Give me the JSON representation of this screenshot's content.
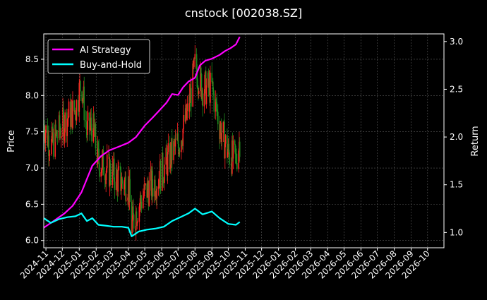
{
  "colors": {
    "background": "#000000",
    "foreground": "#ffffff",
    "grid": "#5a5a5a",
    "strategy": "#ff00ff",
    "buyhold": "#00ffff",
    "candle_up": "#ff2222",
    "candle_down": "#1f8a1f"
  },
  "chart_data": {
    "type": "line",
    "title": "cnstock [002038.SZ]",
    "ylabel_left": "Price",
    "ylabel_right": "Return",
    "grid": true,
    "legend_placement": "top-left",
    "x_tick_labels": [
      "2024-11",
      "2024-12",
      "2025-01",
      "2025-02",
      "2025-03",
      "2025-04",
      "2025-05",
      "2025-06",
      "2025-07",
      "2025-08",
      "2025-09",
      "2025-10",
      "2025-11",
      "2025-12",
      "2026-01",
      "2026-02",
      "2026-03",
      "2026-04",
      "2026-05",
      "2026-06",
      "2026-07",
      "2026-08",
      "2026-09",
      "2026-10"
    ],
    "xlim": [
      "2024-10-28",
      "2026-10-31"
    ],
    "y_left": {
      "ticks": [
        "6.0",
        "6.5",
        "7.0",
        "7.5",
        "8.0",
        "8.5"
      ],
      "lim": [
        5.9,
        8.85
      ]
    },
    "y_right": {
      "ticks": [
        "1.0",
        "1.5",
        "2.0",
        "2.5",
        "3.0"
      ],
      "lim": [
        0.84,
        3.08
      ]
    },
    "series": [
      {
        "name": "AI Strategy",
        "axis": "right",
        "x": [
          "2024-10-28",
          "2024-11-15",
          "2024-12-05",
          "2024-12-20",
          "2025-01-05",
          "2025-01-15",
          "2025-01-25",
          "2025-02-10",
          "2025-02-25",
          "2025-03-15",
          "2025-04-01",
          "2025-04-15",
          "2025-05-01",
          "2025-05-15",
          "2025-05-28",
          "2025-06-10",
          "2025-06-20",
          "2025-07-01",
          "2025-07-10",
          "2025-07-20",
          "2025-08-01",
          "2025-08-10",
          "2025-08-20",
          "2025-09-01",
          "2025-09-15",
          "2025-09-25",
          "2025-10-05",
          "2025-10-15",
          "2025-10-22"
        ],
        "values": [
          1.05,
          1.12,
          1.2,
          1.28,
          1.42,
          1.56,
          1.7,
          1.8,
          1.86,
          1.9,
          1.94,
          2.0,
          2.12,
          2.2,
          2.28,
          2.36,
          2.45,
          2.44,
          2.52,
          2.58,
          2.62,
          2.75,
          2.8,
          2.82,
          2.86,
          2.9,
          2.93,
          2.97,
          3.05
        ]
      },
      {
        "name": "Buy-and-Hold",
        "axis": "right",
        "x": [
          "2024-10-28",
          "2024-11-10",
          "2024-11-25",
          "2024-12-10",
          "2024-12-25",
          "2025-01-05",
          "2025-01-15",
          "2025-01-25",
          "2025-02-05",
          "2025-02-20",
          "2025-03-05",
          "2025-03-20",
          "2025-04-01",
          "2025-04-07",
          "2025-04-20",
          "2025-05-05",
          "2025-05-20",
          "2025-06-05",
          "2025-06-20",
          "2025-07-05",
          "2025-07-20",
          "2025-08-01",
          "2025-08-15",
          "2025-09-01",
          "2025-09-15",
          "2025-10-01",
          "2025-10-15",
          "2025-10-22"
        ],
        "values": [
          1.15,
          1.1,
          1.14,
          1.16,
          1.17,
          1.2,
          1.12,
          1.15,
          1.08,
          1.07,
          1.06,
          1.06,
          1.05,
          0.96,
          1.01,
          1.03,
          1.04,
          1.06,
          1.12,
          1.16,
          1.2,
          1.25,
          1.19,
          1.22,
          1.15,
          1.09,
          1.08,
          1.11
        ]
      }
    ],
    "price_candles": {
      "axis": "left",
      "x": [
        "2024-10-28",
        "2024-11-10",
        "2024-11-25",
        "2024-12-10",
        "2024-12-25",
        "2025-01-05",
        "2025-01-15",
        "2025-01-25",
        "2025-02-05",
        "2025-02-20",
        "2025-03-05",
        "2025-03-20",
        "2025-04-01",
        "2025-04-07",
        "2025-04-20",
        "2025-05-05",
        "2025-05-20",
        "2025-06-05",
        "2025-06-20",
        "2025-07-05",
        "2025-07-20",
        "2025-08-01",
        "2025-08-15",
        "2025-09-01",
        "2025-09-15",
        "2025-10-01",
        "2025-10-15",
        "2025-10-22"
      ],
      "close": [
        7.6,
        7.3,
        7.5,
        7.7,
        7.8,
        8.2,
        7.5,
        7.6,
        7.1,
        7.0,
        6.9,
        6.8,
        6.8,
        6.2,
        6.5,
        6.7,
        6.8,
        7.0,
        7.2,
        7.4,
        7.8,
        8.4,
        8.1,
        8.1,
        7.6,
        7.2,
        7.1,
        7.4
      ]
    }
  }
}
